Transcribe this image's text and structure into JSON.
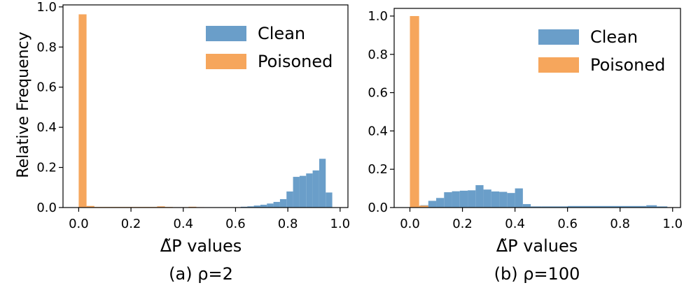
{
  "chart_data": [
    {
      "type": "histogram",
      "caption": "(a) ρ=2",
      "xlabel": "Δ̃P values",
      "ylabel": "Relative Frequency",
      "xlim": [
        -0.06,
        1.03
      ],
      "ylim": [
        0,
        1.01
      ],
      "xticks": [
        "0.0",
        "0.2",
        "0.4",
        "0.6",
        "0.8",
        "1.0"
      ],
      "yticks": [
        "0.0",
        "0.2",
        "0.4",
        "0.6",
        "0.8",
        "1.0"
      ],
      "legend": "top-right",
      "series": [
        {
          "name": "Clean",
          "color": "#6a9ec9",
          "bins": [
            [
              0.62,
              0.645,
              0.004
            ],
            [
              0.645,
              0.67,
              0.006
            ],
            [
              0.67,
              0.695,
              0.01
            ],
            [
              0.695,
              0.72,
              0.014
            ],
            [
              0.72,
              0.745,
              0.02
            ],
            [
              0.745,
              0.77,
              0.028
            ],
            [
              0.77,
              0.795,
              0.042
            ],
            [
              0.795,
              0.82,
              0.08
            ],
            [
              0.82,
              0.845,
              0.153
            ],
            [
              0.845,
              0.87,
              0.158
            ],
            [
              0.87,
              0.895,
              0.17
            ],
            [
              0.895,
              0.92,
              0.185
            ],
            [
              0.92,
              0.945,
              0.243
            ],
            [
              0.945,
              0.97,
              0.075
            ]
          ]
        },
        {
          "name": "Poisoned",
          "color": "#f6a65c",
          "bins": [
            [
              0,
              0.03,
              0.963
            ],
            [
              0.03,
              0.06,
              0.008
            ],
            [
              0.06,
              0.09,
              0.003
            ],
            [
              0.09,
              0.12,
              0.003
            ],
            [
              0.12,
              0.15,
              0.003
            ],
            [
              0.15,
              0.18,
              0.003
            ],
            [
              0.18,
              0.21,
              0.003
            ],
            [
              0.21,
              0.24,
              0.003
            ],
            [
              0.24,
              0.27,
              0.003
            ],
            [
              0.27,
              0.3,
              0.003
            ],
            [
              0.3,
              0.33,
              0.006
            ],
            [
              0.33,
              0.36,
              0.003
            ],
            [
              0.36,
              0.39,
              0.002
            ],
            [
              0.39,
              0.42,
              0.002
            ],
            [
              0.42,
              0.45,
              0.004
            ],
            [
              0.45,
              0.48,
              0.002
            ]
          ]
        }
      ]
    },
    {
      "type": "histogram",
      "caption": "(b) ρ=100",
      "xlabel": "Δ̃P values",
      "ylabel": "",
      "xlim": [
        -0.06,
        1.03
      ],
      "ylim": [
        0,
        1.04
      ],
      "xticks": [
        "0.0",
        "0.2",
        "0.4",
        "0.6",
        "0.8",
        "1.0"
      ],
      "yticks": [
        "0.0",
        "0.2",
        "0.4",
        "0.6",
        "0.8",
        "1.0"
      ],
      "legend": "top-right",
      "series": [
        {
          "name": "Clean",
          "color": "#6a9ec9",
          "bins": [
            [
              0.04,
              0.07,
              0.012
            ],
            [
              0.07,
              0.1,
              0.035
            ],
            [
              0.1,
              0.13,
              0.05
            ],
            [
              0.13,
              0.16,
              0.08
            ],
            [
              0.16,
              0.19,
              0.085
            ],
            [
              0.19,
              0.22,
              0.088
            ],
            [
              0.22,
              0.25,
              0.09
            ],
            [
              0.25,
              0.28,
              0.117
            ],
            [
              0.28,
              0.31,
              0.094
            ],
            [
              0.31,
              0.34,
              0.084
            ],
            [
              0.34,
              0.37,
              0.082
            ],
            [
              0.37,
              0.4,
              0.076
            ],
            [
              0.4,
              0.43,
              0.1
            ],
            [
              0.43,
              0.46,
              0.018
            ],
            [
              0.46,
              0.5,
              0.006
            ],
            [
              0.5,
              0.6,
              0.006
            ],
            [
              0.6,
              0.9,
              0.008
            ],
            [
              0.9,
              0.94,
              0.012
            ],
            [
              0.94,
              0.98,
              0.006
            ]
          ]
        },
        {
          "name": "Poisoned",
          "color": "#f6a65c",
          "bins": [
            [
              0,
              0.035,
              1.0
            ],
            [
              0.035,
              0.07,
              0.01
            ]
          ]
        }
      ]
    }
  ]
}
